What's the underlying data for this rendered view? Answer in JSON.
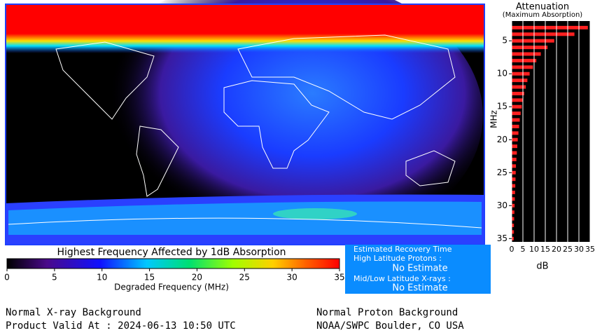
{
  "colorbar": {
    "title": "Highest Frequency Affected by 1dB Absorption",
    "xlabel": "Degraded Frequency (MHz)",
    "xlim": [
      0,
      35
    ],
    "xticks": [
      0,
      5,
      10,
      15,
      20,
      25,
      30,
      35
    ]
  },
  "recovery": {
    "title": "Estimated Recovery Time",
    "hlp_label": "High Latitude Protons :",
    "hlp_value": "No Estimate",
    "mll_label": "Mid/Low Latitude X-rays :",
    "mll_value": "No Estimate"
  },
  "chart_data": {
    "type": "bar",
    "orientation": "horizontal",
    "title": "Attenuation",
    "subtitle": "(Maximum Absorption)",
    "ylabel": "MHz",
    "xlabel": "dB",
    "y": [
      3,
      4,
      5,
      6,
      7,
      8,
      9,
      10,
      11,
      12,
      13,
      14,
      15,
      16,
      17,
      18,
      19,
      20,
      21,
      22,
      23,
      24,
      25,
      26,
      27,
      28,
      29,
      30,
      31,
      32,
      33,
      34,
      35
    ],
    "values": [
      34,
      28,
      19,
      16,
      13,
      11,
      9.5,
      8,
      7,
      6.3,
      5.6,
      5,
      4.5,
      4,
      3.6,
      3.3,
      3,
      2.7,
      2.5,
      2.3,
      2.1,
      1.9,
      1.8,
      1.7,
      1.6,
      1.5,
      1.4,
      1.3,
      1.2,
      1.1,
      1,
      1,
      0.9
    ],
    "color": "#ff2020",
    "xlim": [
      0,
      35
    ],
    "xticks": [
      0,
      5,
      10,
      15,
      20,
      25,
      30,
      35
    ],
    "ylim": [
      2,
      35.5
    ],
    "yticks": [
      5,
      10,
      15,
      20,
      25,
      30,
      35
    ],
    "grid": true
  },
  "footer": {
    "left_1": "Normal X-ray Background",
    "left_2": "Product Valid At : 2024-06-13 10:50 UTC",
    "right_1": "Normal Proton Background",
    "right_2": "NOAA/SWPC Boulder, CO USA"
  }
}
